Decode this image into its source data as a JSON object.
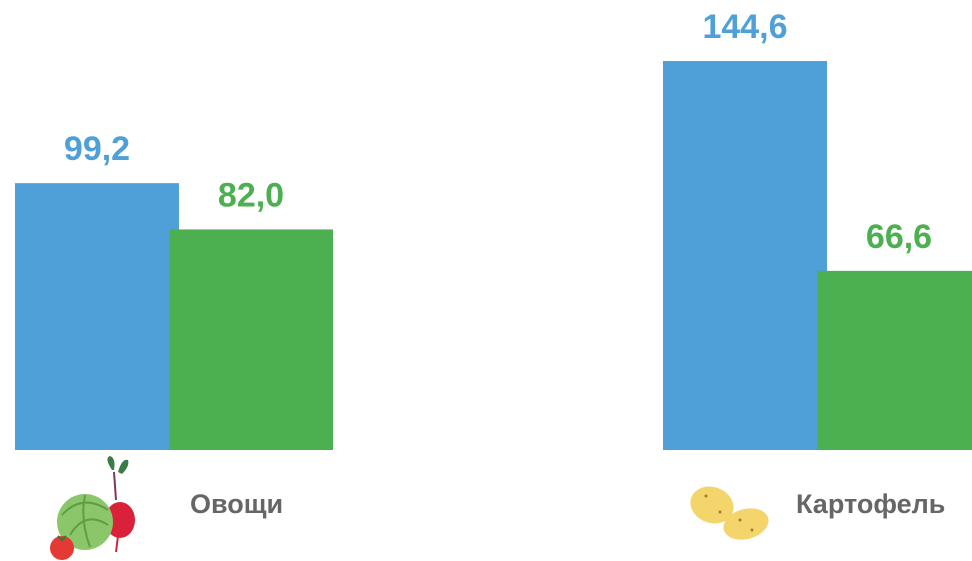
{
  "chart_data": {
    "type": "bar",
    "categories": [
      "Овощи",
      "Картофель"
    ],
    "series": [
      {
        "color": "#4f9fd8",
        "values": [
          99.2,
          144.6
        ],
        "value_labels": [
          "99,2",
          "144,6"
        ]
      },
      {
        "color": "#4caf50",
        "values": [
          82.0,
          66.6
        ],
        "value_labels": [
          "82,0",
          "66,6"
        ]
      }
    ]
  }
}
